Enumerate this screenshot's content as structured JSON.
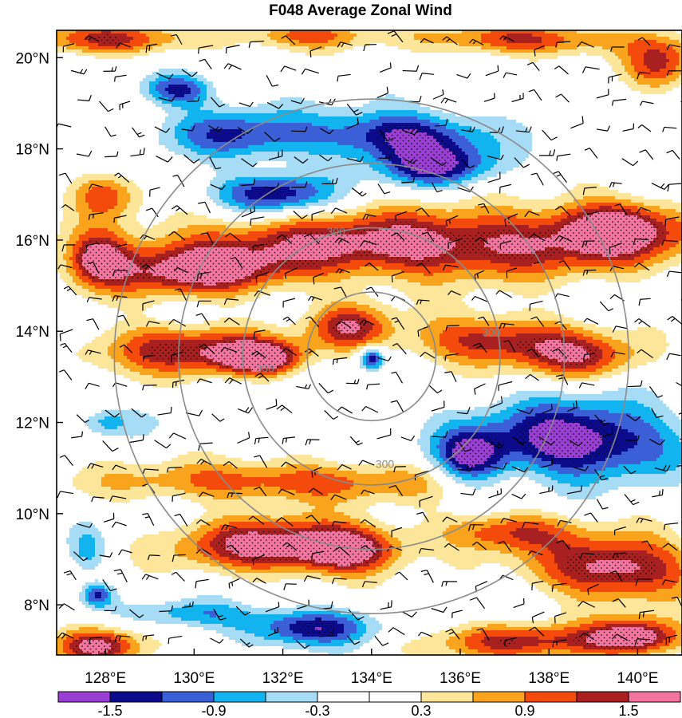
{
  "chart_data": {
    "type": "heatmap",
    "title": "F048 Average Zonal Wind",
    "xlabel": "",
    "ylabel": "",
    "xlim": [
      126.9,
      141.0
    ],
    "ylim": [
      6.9,
      20.6
    ],
    "x_ticks": [
      {
        "value": 128,
        "label": "128°E"
      },
      {
        "value": 130,
        "label": "130°E"
      },
      {
        "value": 132,
        "label": "132°E"
      },
      {
        "value": 134,
        "label": "134°E"
      },
      {
        "value": 136,
        "label": "136°E"
      },
      {
        "value": 138,
        "label": "138°E"
      },
      {
        "value": 140,
        "label": "140°E"
      }
    ],
    "y_ticks": [
      {
        "value": 8,
        "label": "8°N"
      },
      {
        "value": 10,
        "label": "10°N"
      },
      {
        "value": 12,
        "label": "12°N"
      },
      {
        "value": 14,
        "label": "14°N"
      },
      {
        "value": 16,
        "label": "16°N"
      },
      {
        "value": 18,
        "label": "18°N"
      },
      {
        "value": 20,
        "label": "20°N"
      }
    ],
    "colorbar": {
      "colors": [
        "#9a3fd4",
        "#0b0b8c",
        "#3a5fd6",
        "#11b4ef",
        "#a6dcf5",
        "#ffffff",
        "#ffffff",
        "#fde59a",
        "#f9a41c",
        "#f44a0c",
        "#a8201f",
        "#f474a0"
      ],
      "levels": [
        -1.5,
        -1.2,
        -0.9,
        -0.6,
        -0.3,
        0,
        0.3,
        0.6,
        0.9,
        1.2,
        1.5
      ],
      "labels": [
        {
          "value": -1.5,
          "label": "-1.5"
        },
        {
          "value": -0.9,
          "label": "-0.9"
        },
        {
          "value": -0.3,
          "label": "-0.3"
        },
        {
          "value": 0.3,
          "label": "0.3"
        },
        {
          "value": 0.9,
          "label": "0.9"
        },
        {
          "value": 1.5,
          "label": "1.5"
        }
      ]
    },
    "range_rings": {
      "center": [
        134.0,
        13.45
      ],
      "radii_deg": [
        1.45,
        2.9,
        4.35,
        5.8
      ],
      "labels": [
        {
          "text": "300",
          "lon": 133.2,
          "lat": 16.1
        },
        {
          "text": "300",
          "lon": 131.6,
          "lat": 13.1
        },
        {
          "text": "300",
          "lon": 136.7,
          "lat": 13.9
        },
        {
          "text": "300",
          "lon": 134.3,
          "lat": 11.0
        }
      ]
    },
    "field_blobs": [
      {
        "lon": 128.2,
        "lat": 20.4,
        "sx": 1.8,
        "sy": 0.35,
        "v": 1.3
      },
      {
        "lon": 132.5,
        "lat": 20.5,
        "sx": 1.5,
        "sy": 0.3,
        "v": 1.0
      },
      {
        "lon": 137.5,
        "lat": 20.4,
        "sx": 2.2,
        "sy": 0.35,
        "v": 1.3
      },
      {
        "lon": 140.5,
        "lat": 19.9,
        "sx": 0.8,
        "sy": 0.6,
        "v": 1.2
      },
      {
        "lon": 131.0,
        "lat": 18.3,
        "sx": 1.6,
        "sy": 0.55,
        "v": -1.2
      },
      {
        "lon": 134.6,
        "lat": 18.3,
        "sx": 1.9,
        "sy": 0.55,
        "v": -1.55
      },
      {
        "lon": 135.5,
        "lat": 17.6,
        "sx": 1.3,
        "sy": 0.45,
        "v": -1.4
      },
      {
        "lon": 131.8,
        "lat": 17.0,
        "sx": 1.3,
        "sy": 0.45,
        "v": -1.55
      },
      {
        "lon": 129.6,
        "lat": 19.3,
        "sx": 0.8,
        "sy": 0.35,
        "v": -1.35
      },
      {
        "lon": 128.0,
        "lat": 17.0,
        "sx": 0.7,
        "sy": 0.5,
        "v": 1.0
      },
      {
        "lon": 135.0,
        "lat": 15.9,
        "sx": 5.5,
        "sy": 0.75,
        "v": 1.75
      },
      {
        "lon": 130.0,
        "lat": 15.3,
        "sx": 2.0,
        "sy": 0.55,
        "v": 1.5
      },
      {
        "lon": 127.8,
        "lat": 15.6,
        "sx": 0.7,
        "sy": 0.6,
        "v": 1.4
      },
      {
        "lon": 139.5,
        "lat": 16.3,
        "sx": 1.4,
        "sy": 0.6,
        "v": 1.5
      },
      {
        "lon": 129.8,
        "lat": 13.6,
        "sx": 2.2,
        "sy": 0.55,
        "v": 1.45
      },
      {
        "lon": 131.5,
        "lat": 13.4,
        "sx": 0.9,
        "sy": 0.35,
        "v": 1.65
      },
      {
        "lon": 133.5,
        "lat": 14.1,
        "sx": 0.9,
        "sy": 0.5,
        "v": 1.3
      },
      {
        "lon": 136.8,
        "lat": 13.8,
        "sx": 2.0,
        "sy": 0.55,
        "v": 1.4
      },
      {
        "lon": 138.8,
        "lat": 13.4,
        "sx": 1.3,
        "sy": 0.5,
        "v": 1.1
      },
      {
        "lon": 134.0,
        "lat": 13.4,
        "sx": 0.28,
        "sy": 0.25,
        "v": -1.6
      },
      {
        "lon": 129.0,
        "lat": 12.0,
        "sx": 3.0,
        "sy": 0.4,
        "v": -0.2
      },
      {
        "lon": 128.0,
        "lat": 12.0,
        "sx": 0.5,
        "sy": 0.25,
        "v": -0.45
      },
      {
        "lon": 138.6,
        "lat": 11.6,
        "sx": 2.2,
        "sy": 0.85,
        "v": -1.85
      },
      {
        "lon": 136.2,
        "lat": 11.2,
        "sx": 0.8,
        "sy": 0.6,
        "v": -1.4
      },
      {
        "lon": 132.0,
        "lat": 10.7,
        "sx": 4.0,
        "sy": 0.45,
        "v": 1.15
      },
      {
        "lon": 131.6,
        "lat": 9.3,
        "sx": 2.0,
        "sy": 0.6,
        "v": 1.65
      },
      {
        "lon": 133.5,
        "lat": 9.2,
        "sx": 1.2,
        "sy": 0.5,
        "v": 1.6
      },
      {
        "lon": 139.5,
        "lat": 8.8,
        "sx": 1.8,
        "sy": 0.7,
        "v": 1.75
      },
      {
        "lon": 137.0,
        "lat": 9.6,
        "sx": 1.5,
        "sy": 0.45,
        "v": 1.2
      },
      {
        "lon": 127.6,
        "lat": 9.2,
        "sx": 0.4,
        "sy": 0.5,
        "v": -0.65
      },
      {
        "lon": 127.8,
        "lat": 8.2,
        "sx": 0.35,
        "sy": 0.25,
        "v": -1.2
      },
      {
        "lon": 132.6,
        "lat": 7.5,
        "sx": 1.5,
        "sy": 0.4,
        "v": -1.5
      },
      {
        "lon": 130.0,
        "lat": 7.8,
        "sx": 1.3,
        "sy": 0.3,
        "v": -0.8
      },
      {
        "lon": 127.8,
        "lat": 7.1,
        "sx": 1.0,
        "sy": 0.4,
        "v": 1.65
      },
      {
        "lon": 137.5,
        "lat": 7.2,
        "sx": 2.5,
        "sy": 0.4,
        "v": 1.25
      },
      {
        "lon": 140.0,
        "lat": 7.3,
        "sx": 1.0,
        "sy": 0.4,
        "v": 1.55
      }
    ]
  }
}
